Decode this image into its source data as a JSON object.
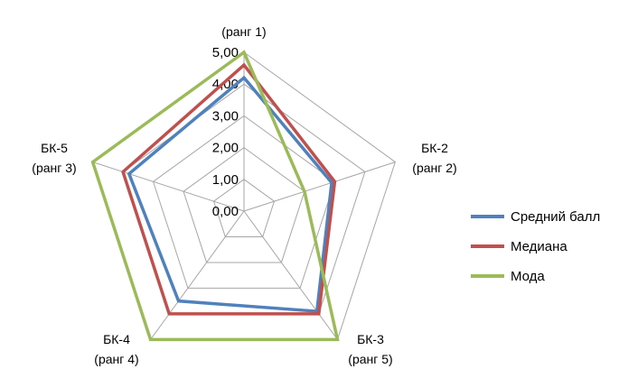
{
  "chart_data": {
    "type": "radar",
    "categories": [
      {
        "name": "",
        "rank": "(ранг 1)"
      },
      {
        "name": "БК-2",
        "rank": "(ранг 2)"
      },
      {
        "name": "БК-3",
        "rank": "(ранг 5)"
      },
      {
        "name": "БК-4",
        "rank": "(ранг 4)"
      },
      {
        "name": "БК-5",
        "rank": "(ранг 3)"
      }
    ],
    "rlim": [
      0,
      5
    ],
    "ticks": [
      "0,00",
      "1,00",
      "2,00",
      "3,00",
      "4,00",
      "5,00"
    ],
    "series": [
      {
        "name": "Средний балл",
        "color": "#4f81bd",
        "values": [
          4.2,
          2.9,
          3.9,
          3.5,
          3.8
        ]
      },
      {
        "name": "Медиана",
        "color": "#c0504d",
        "values": [
          4.6,
          3.0,
          4.0,
          4.0,
          4.0
        ]
      },
      {
        "name": "Мода",
        "color": "#9bbb59",
        "values": [
          5.0,
          2.0,
          5.0,
          5.0,
          5.0
        ]
      }
    ],
    "legend": "right",
    "grid": true
  }
}
